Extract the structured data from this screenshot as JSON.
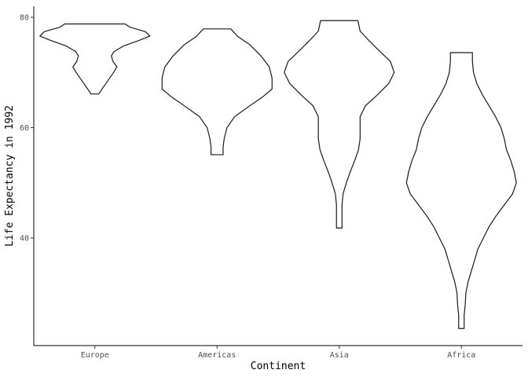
{
  "chart_data": {
    "type": "violin",
    "xlabel": "Continent",
    "ylabel": "Life Expectancy in 1992",
    "ylim": [
      20.5,
      82
    ],
    "yticks": [
      40,
      60,
      80
    ],
    "categories": [
      "Europe",
      "Americas",
      "Asia",
      "Africa"
    ],
    "grid": false,
    "violins": [
      {
        "category": "Europe",
        "min": 66.1,
        "max": 78.8,
        "profile": [
          [
            66.1,
            0.07
          ],
          [
            67.0,
            0.13
          ],
          [
            68.0,
            0.2
          ],
          [
            69.0,
            0.27
          ],
          [
            70.0,
            0.34
          ],
          [
            71.0,
            0.4
          ],
          [
            72.0,
            0.33
          ],
          [
            73.0,
            0.3
          ],
          [
            73.8,
            0.35
          ],
          [
            74.8,
            0.52
          ],
          [
            75.8,
            0.8
          ],
          [
            76.6,
            1.0
          ],
          [
            77.4,
            0.92
          ],
          [
            78.2,
            0.64
          ],
          [
            78.8,
            0.55
          ]
        ]
      },
      {
        "category": "Americas",
        "min": 55.1,
        "max": 77.9,
        "profile": [
          [
            55.1,
            0.11
          ],
          [
            56.5,
            0.11
          ],
          [
            58.0,
            0.13
          ],
          [
            60.0,
            0.18
          ],
          [
            62.0,
            0.32
          ],
          [
            64.0,
            0.6
          ],
          [
            65.5,
            0.82
          ],
          [
            67.0,
            1.0
          ],
          [
            69.0,
            1.0
          ],
          [
            71.0,
            0.95
          ],
          [
            73.0,
            0.8
          ],
          [
            75.0,
            0.6
          ],
          [
            76.5,
            0.38
          ],
          [
            77.9,
            0.25
          ]
        ]
      },
      {
        "category": "Asia",
        "min": 41.8,
        "max": 79.4,
        "profile": [
          [
            41.8,
            0.05
          ],
          [
            44.0,
            0.05
          ],
          [
            46.0,
            0.05
          ],
          [
            48.0,
            0.07
          ],
          [
            50.0,
            0.13
          ],
          [
            52.0,
            0.2
          ],
          [
            54.0,
            0.28
          ],
          [
            56.0,
            0.35
          ],
          [
            58.0,
            0.38
          ],
          [
            60.0,
            0.38
          ],
          [
            62.0,
            0.38
          ],
          [
            64.0,
            0.48
          ],
          [
            66.0,
            0.7
          ],
          [
            68.0,
            0.9
          ],
          [
            70.0,
            1.0
          ],
          [
            72.0,
            0.93
          ],
          [
            74.0,
            0.72
          ],
          [
            76.0,
            0.52
          ],
          [
            77.5,
            0.38
          ],
          [
            79.4,
            0.34
          ]
        ]
      },
      {
        "category": "Africa",
        "min": 23.6,
        "max": 73.6,
        "profile": [
          [
            23.6,
            0.05
          ],
          [
            26.0,
            0.05
          ],
          [
            28.0,
            0.07
          ],
          [
            30.0,
            0.08
          ],
          [
            32.0,
            0.12
          ],
          [
            34.0,
            0.18
          ],
          [
            36.0,
            0.24
          ],
          [
            38.0,
            0.3
          ],
          [
            40.0,
            0.4
          ],
          [
            42.0,
            0.5
          ],
          [
            44.0,
            0.63
          ],
          [
            46.0,
            0.78
          ],
          [
            48.0,
            0.93
          ],
          [
            50.0,
            1.0
          ],
          [
            52.0,
            0.96
          ],
          [
            54.0,
            0.9
          ],
          [
            56.0,
            0.82
          ],
          [
            58.0,
            0.78
          ],
          [
            60.0,
            0.72
          ],
          [
            62.0,
            0.62
          ],
          [
            64.0,
            0.5
          ],
          [
            66.0,
            0.38
          ],
          [
            68.0,
            0.28
          ],
          [
            70.0,
            0.22
          ],
          [
            72.0,
            0.2
          ],
          [
            73.6,
            0.2
          ]
        ]
      }
    ]
  }
}
